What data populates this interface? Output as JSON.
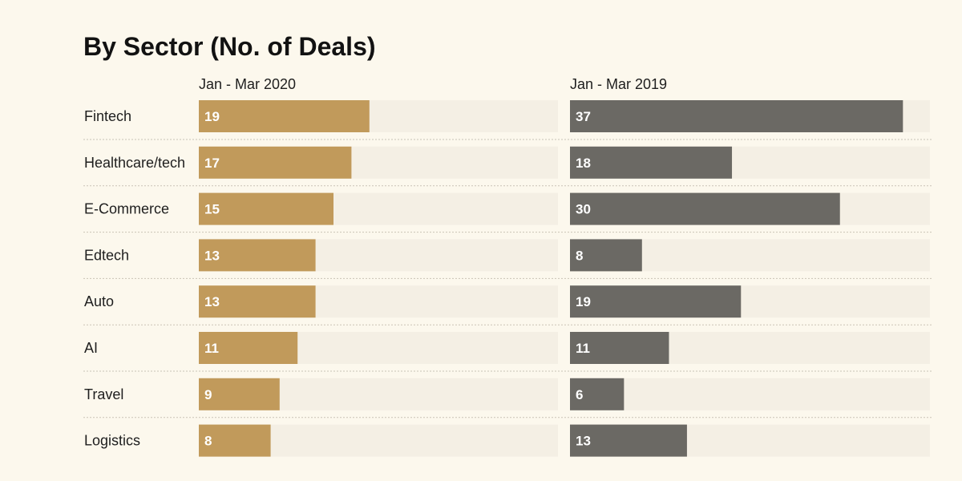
{
  "chart_data": {
    "type": "bar",
    "orientation": "horizontal",
    "title": "By Sector (No. of Deals)",
    "categories": [
      "Fintech",
      "Healthcare/tech",
      "E-Commerce",
      "Edtech",
      "Auto",
      "AI",
      "Travel",
      "Logistics"
    ],
    "series": [
      {
        "name": "Jan - Mar 2020",
        "values": [
          19,
          17,
          15,
          13,
          13,
          11,
          9,
          8
        ],
        "color": "#c19a5b"
      },
      {
        "name": "Jan - Mar 2019",
        "values": [
          37,
          18,
          30,
          8,
          19,
          11,
          6,
          13
        ],
        "color": "#6b6964"
      }
    ],
    "xlim": [
      0,
      40
    ],
    "xlabel": "",
    "ylabel": "",
    "grid": false,
    "legend": "none"
  }
}
